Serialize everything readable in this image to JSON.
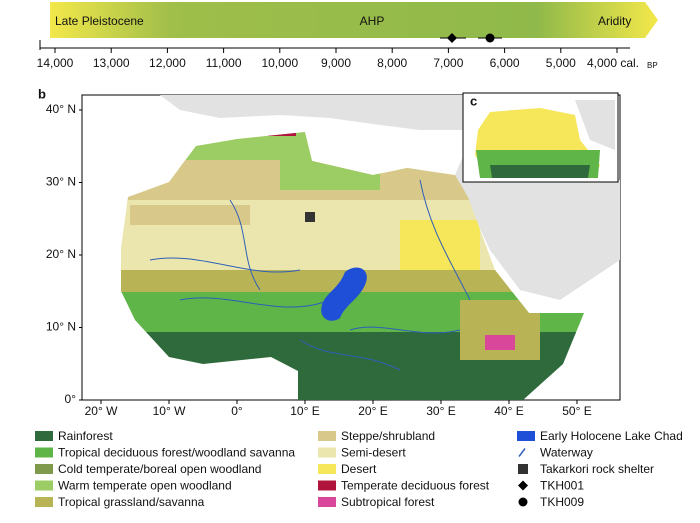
{
  "timeline": {
    "phases": [
      "Late Pleistocene",
      "AHP",
      "Aridity"
    ],
    "ticks": [
      "14,000",
      "13,000",
      "12,000",
      "11,000",
      "10,000",
      "9,000",
      "8,000",
      "7,000",
      "6,000",
      "5,000",
      "4,000 cal."
    ],
    "unit": "BP"
  },
  "map": {
    "panel_label": "b",
    "inset_label": "c",
    "lat_labels": [
      "40° N",
      "30° N",
      "20° N",
      "10° N",
      "0°"
    ],
    "lon_labels": [
      "20° W",
      "10° W",
      "0°",
      "10° E",
      "20° E",
      "30° E",
      "40° E",
      "50° E"
    ]
  },
  "legend": [
    {
      "label": "Rainforest",
      "symbol": "swatch",
      "color": "#2f6a3c"
    },
    {
      "label": "Tropical deciduous forest/woodland savanna",
      "symbol": "swatch",
      "color": "#5fb548"
    },
    {
      "label": "Cold temperate/boreal open woodland",
      "symbol": "swatch",
      "color": "#7f9a4a"
    },
    {
      "label": "Warm temperate open woodland",
      "symbol": "swatch",
      "color": "#9ccc64"
    },
    {
      "label": "Tropical grassland/savanna",
      "symbol": "swatch",
      "color": "#b8b456"
    },
    {
      "label": "Steppe/shrubland",
      "symbol": "swatch",
      "color": "#d8c98a"
    },
    {
      "label": "Semi-desert",
      "symbol": "swatch",
      "color": "#ebe6ae"
    },
    {
      "label": "Desert",
      "symbol": "swatch",
      "color": "#f5e65a"
    },
    {
      "label": "Temperate deciduous forest",
      "symbol": "swatch",
      "color": "#b0143c"
    },
    {
      "label": "Subtropical forest",
      "symbol": "swatch",
      "color": "#d8479a"
    },
    {
      "label": "Early Holocene Lake Chad",
      "symbol": "swatch",
      "color": "#1f4fd6"
    },
    {
      "label": "Waterway",
      "symbol": "line",
      "color": "#2f5fb8"
    },
    {
      "label": "Takarkori rock shelter",
      "symbol": "square",
      "color": "#333333"
    },
    {
      "label": "TKH001",
      "symbol": "diamond",
      "color": "#000000"
    },
    {
      "label": "TKH009",
      "symbol": "circle",
      "color": "#000000"
    }
  ]
}
